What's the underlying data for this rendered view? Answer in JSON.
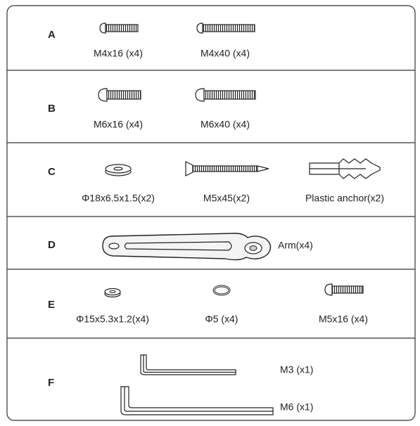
{
  "rows": [
    {
      "letter": "A",
      "items": [
        "M4x16 (x4)",
        "M4x40 (x4)"
      ]
    },
    {
      "letter": "B",
      "items": [
        "M6x16 (x4)",
        "M6x40 (x4)"
      ]
    },
    {
      "letter": "C",
      "items": [
        "Φ18x6.5x1.5(x2)",
        "M5x45(x2)",
        "Plastic anchor(x2)"
      ]
    },
    {
      "letter": "D",
      "items": [
        "Arm(x4)"
      ]
    },
    {
      "letter": "E",
      "items": [
        "Φ15x5.3x1.2(x4)",
        "Φ5 (x4)",
        "M5x16 (x4)"
      ]
    },
    {
      "letter": "F",
      "items": [
        "M3 (x1)",
        "M6 (x1)"
      ]
    }
  ]
}
